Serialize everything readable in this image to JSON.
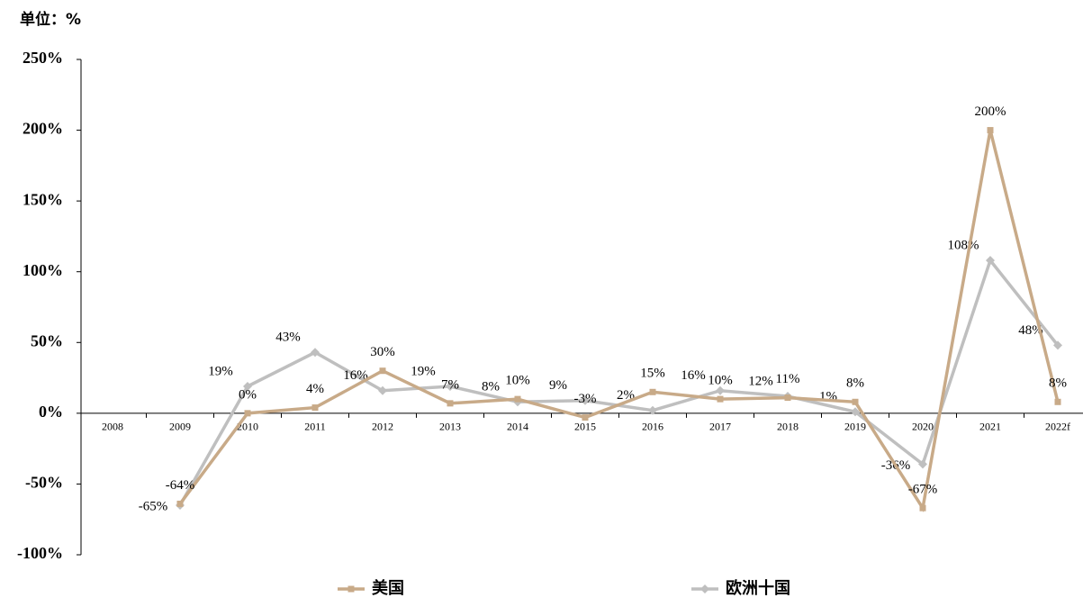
{
  "chart_data": {
    "type": "line",
    "unit_label": "单位：%",
    "categories": [
      "2008",
      "2009",
      "2010",
      "2011",
      "2012",
      "2013",
      "2014",
      "2015",
      "2016",
      "2017",
      "2018",
      "2019",
      "2020",
      "2021",
      "2022f"
    ],
    "series": [
      {
        "name": "美国",
        "color": "#c8aa88",
        "marker": "square",
        "values": [
          null,
          -64,
          0,
          4,
          30,
          7,
          10,
          -3,
          15,
          10,
          11,
          8,
          -67,
          200,
          8
        ],
        "value_labels": [
          null,
          "-64%",
          "0%",
          "4%",
          "30%",
          "7%",
          "10%",
          "-3%",
          "15%",
          "10%",
          "11%",
          "8%",
          "-67%",
          "200%",
          "8%"
        ]
      },
      {
        "name": "欧洲十国",
        "color": "#bfbfbf",
        "marker": "diamond",
        "values": [
          null,
          -65,
          19,
          43,
          16,
          19,
          8,
          9,
          2,
          16,
          12,
          1,
          -36,
          108,
          48
        ],
        "value_labels": [
          null,
          "-65%",
          "19%",
          "43%",
          "16%",
          "19%",
          "8%",
          "9%",
          "2%",
          "16%",
          "12%",
          "1%",
          "-36%",
          "108%",
          "48%"
        ]
      }
    ],
    "ylim": [
      -100,
      250
    ],
    "yticks": [
      {
        "value": -100,
        "label": "-100%"
      },
      {
        "value": -50,
        "label": "-50%"
      },
      {
        "value": 0,
        "label": "0%"
      },
      {
        "value": 50,
        "label": "50%"
      },
      {
        "value": 100,
        "label": "100%"
      },
      {
        "value": 150,
        "label": "150%"
      },
      {
        "value": 200,
        "label": "200%"
      },
      {
        "value": 250,
        "label": "250%"
      }
    ],
    "grid": false
  }
}
